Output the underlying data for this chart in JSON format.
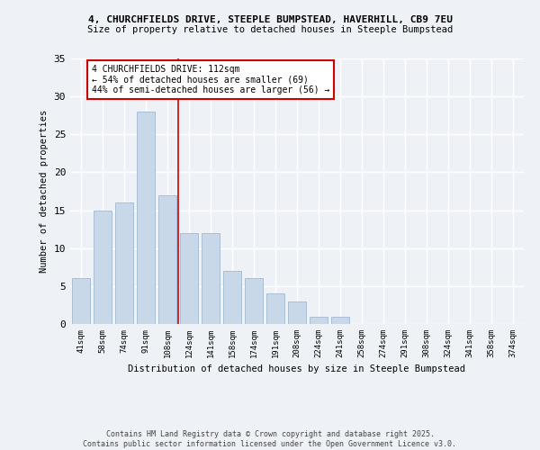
{
  "title1": "4, CHURCHFIELDS DRIVE, STEEPLE BUMPSTEAD, HAVERHILL, CB9 7EU",
  "title2": "Size of property relative to detached houses in Steeple Bumpstead",
  "xlabel": "Distribution of detached houses by size in Steeple Bumpstead",
  "ylabel": "Number of detached properties",
  "bin_labels": [
    "41sqm",
    "58sqm",
    "74sqm",
    "91sqm",
    "108sqm",
    "124sqm",
    "141sqm",
    "158sqm",
    "174sqm",
    "191sqm",
    "208sqm",
    "224sqm",
    "241sqm",
    "258sqm",
    "274sqm",
    "291sqm",
    "308sqm",
    "324sqm",
    "341sqm",
    "358sqm",
    "374sqm"
  ],
  "bar_values": [
    6,
    15,
    16,
    28,
    17,
    12,
    12,
    7,
    6,
    4,
    3,
    1,
    1,
    0,
    0,
    0,
    0,
    0,
    0,
    0,
    0
  ],
  "bar_color": "#c8d8e8",
  "bar_edge_color": "#a0b8d0",
  "vline_bin_index": 4,
  "vline_color": "#cc0000",
  "annotation_text": "4 CHURCHFIELDS DRIVE: 112sqm\n← 54% of detached houses are smaller (69)\n44% of semi-detached houses are larger (56) →",
  "annotation_box_color": "#ffffff",
  "annotation_box_edge": "#cc0000",
  "ylim": [
    0,
    35
  ],
  "yticks": [
    0,
    5,
    10,
    15,
    20,
    25,
    30,
    35
  ],
  "background_color": "#eef2f7",
  "grid_color": "#ffffff",
  "footer1": "Contains HM Land Registry data © Crown copyright and database right 2025.",
  "footer2": "Contains public sector information licensed under the Open Government Licence v3.0."
}
